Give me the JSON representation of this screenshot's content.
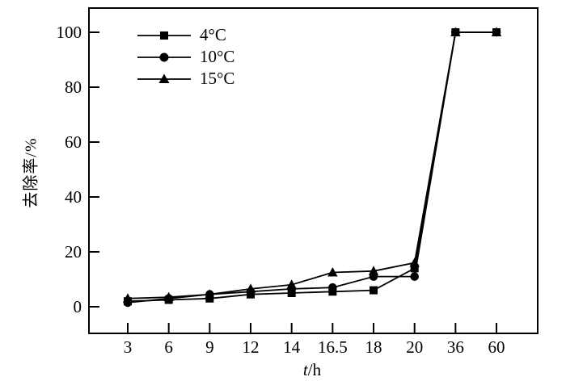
{
  "chart_data": {
    "type": "line",
    "title": "",
    "xlabel": "t/h",
    "xlabel_italic": "t",
    "xlabel_unit": "/h",
    "ylabel": "去除率/%",
    "ylim": [
      0,
      100
    ],
    "yticks": [
      0,
      20,
      40,
      60,
      80,
      100
    ],
    "categories": [
      "3",
      "6",
      "9",
      "12",
      "14",
      "16.5",
      "18",
      "20",
      "36",
      "60"
    ],
    "series": [
      {
        "name": "4°C",
        "marker": "square",
        "color": "#000000",
        "values": [
          2,
          2.5,
          3,
          4.5,
          5,
          5.5,
          6,
          14,
          100,
          100
        ]
      },
      {
        "name": "10°C",
        "marker": "circle",
        "color": "#000000",
        "values": [
          1.5,
          3,
          4.5,
          5.5,
          6.5,
          7,
          11,
          11,
          100,
          100
        ]
      },
      {
        "name": "15°C",
        "marker": "triangle",
        "color": "#000000",
        "values": [
          3,
          3.5,
          4.5,
          6.5,
          8,
          12.5,
          13,
          16,
          100,
          100
        ]
      }
    ],
    "legend_position": "top-left-inside",
    "grid": "off",
    "axis_color": "#000000",
    "background_color": "#ffffff"
  }
}
